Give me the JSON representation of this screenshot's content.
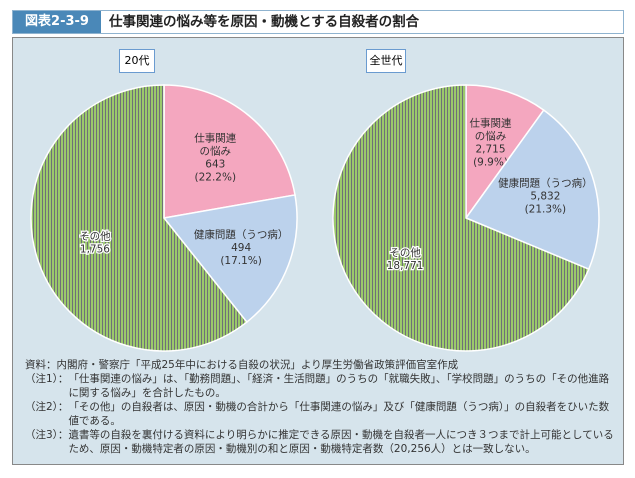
{
  "figure_number": "図表2-3-9",
  "title": "仕事関連の悩み等を原因・動機とする自殺者の割合",
  "chart_data": [
    {
      "type": "pie",
      "title": "20代",
      "start": "12 o'clock, clockwise",
      "slices": [
        {
          "label": "仕事関連の悩み",
          "label_lines": [
            "仕事関連",
            "の悩み"
          ],
          "value": 643,
          "value_text": "643",
          "percent_text": "(22.2%)",
          "color": "#f4a7bf"
        },
        {
          "label": "健康問題（うつ病）",
          "label_lines": [
            "健康問題（うつ病）"
          ],
          "value": 494,
          "value_text": "494",
          "percent_text": "(17.1%)",
          "color": "#bcd2ec"
        },
        {
          "label": "その他",
          "label_lines": [
            "その他"
          ],
          "value": 1756,
          "value_text": "1,756",
          "percent_text": "",
          "color": "#9bc96b",
          "pattern": "vertical-stripes"
        }
      ]
    },
    {
      "type": "pie",
      "title": "全世代",
      "start": "12 o'clock, clockwise",
      "slices": [
        {
          "label": "仕事関連の悩み",
          "label_lines": [
            "仕事関連",
            "の悩み"
          ],
          "value": 2715,
          "value_text": "2,715",
          "percent_text": "(9.9%)",
          "color": "#f4a7bf"
        },
        {
          "label": "健康問題（うつ病）",
          "label_lines": [
            "健康問題（うつ病）"
          ],
          "value": 5832,
          "value_text": "5,832",
          "percent_text": "(21.3%)",
          "color": "#bcd2ec"
        },
        {
          "label": "その他",
          "label_lines": [
            "その他"
          ],
          "value": 18771,
          "value_text": "18,771",
          "percent_text": "",
          "color": "#9bc96b",
          "pattern": "vertical-stripes"
        }
      ]
    }
  ],
  "notes": [
    {
      "key": "資料：",
      "text": "内閣府・警察庁「平成25年中における自殺の状況」より厚生労働省政策評価官室作成"
    },
    {
      "key": "（注1）：",
      "text": "「仕事関連の悩み」は、「勤務問題」、「経済・生活問題」のうちの「就職失敗」、「学校問題」のうちの「その他進路に関する悩み」を合計したもの。"
    },
    {
      "key": "（注2）：",
      "text": "「その他」の自殺者は、原因・動機の合計から「仕事関連の悩み」及び「健康問題（うつ病）」の自殺者をひいた数値である。"
    },
    {
      "key": "（注3）：",
      "text": "遺書等の自殺を裏付ける資料により明らかに推定できる原因・動機を自殺者一人につき３つまで計上可能としているため、原因・動機特定者の原因・動機別の和と原因・動機特定者数（20,256人）とは一致しない。"
    }
  ]
}
